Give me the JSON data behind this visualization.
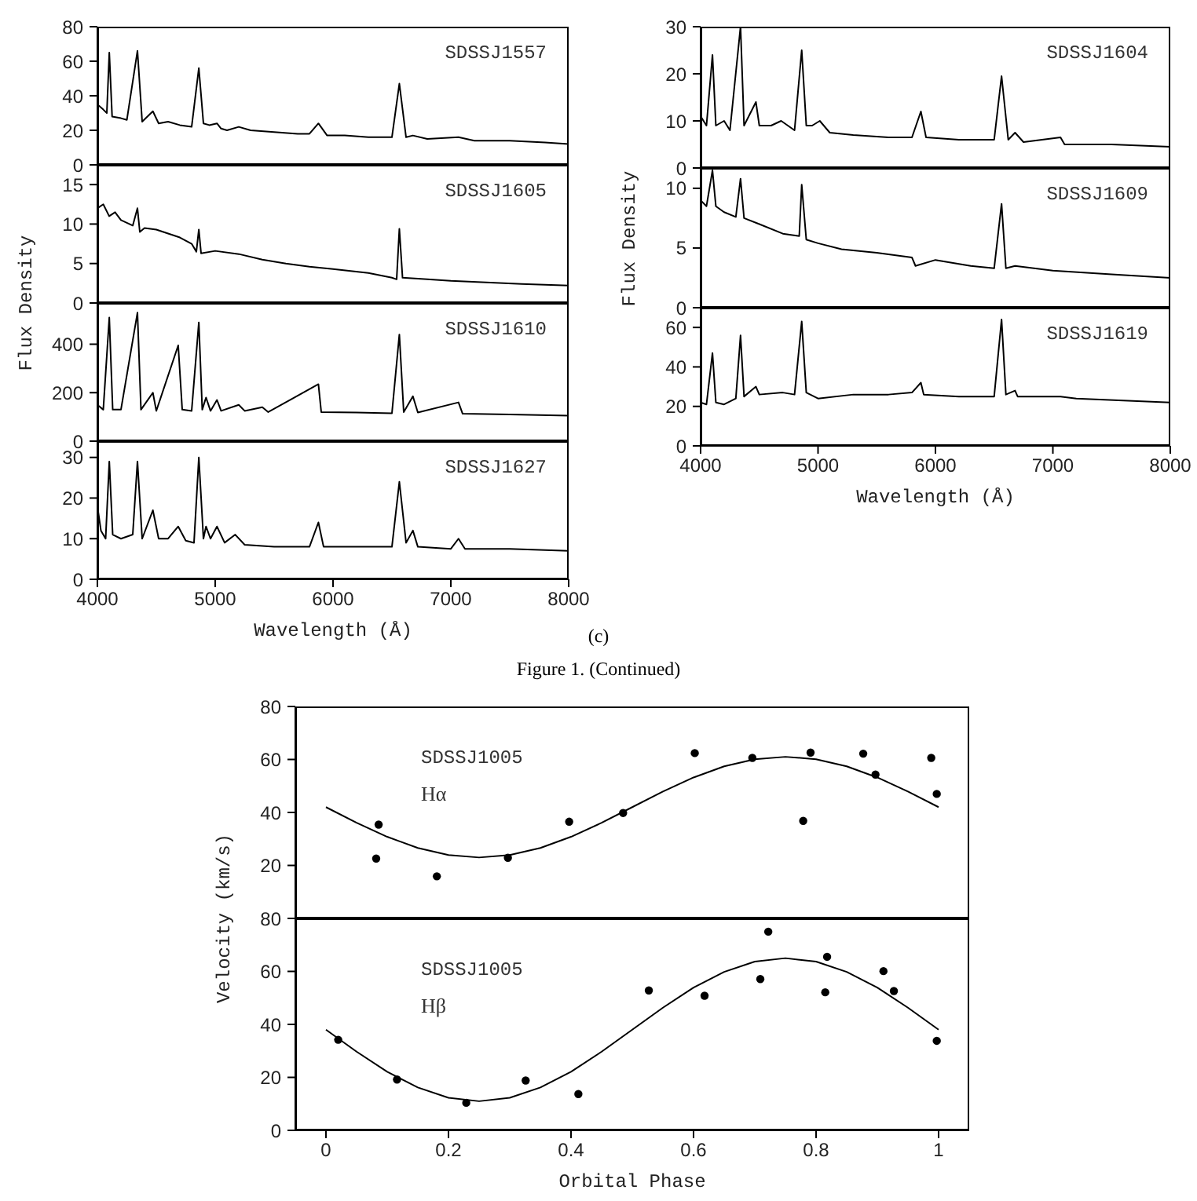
{
  "chart_data": [
    {
      "type": "line",
      "title": "SDSSJ1557",
      "xlim": [
        4000,
        8000
      ],
      "xticks": [
        4000,
        5000,
        6000,
        7000,
        8000
      ],
      "ylim": [
        0,
        80
      ],
      "yticks": [
        0,
        20,
        40,
        60,
        80
      ],
      "tick_labels": "y",
      "color": "#000000",
      "x": [
        4000,
        4050,
        4080,
        4101,
        4125,
        4200,
        4250,
        4340,
        4380,
        4471,
        4520,
        4600,
        4700,
        4800,
        4861,
        4900,
        4950,
        5015,
        5050,
        5100,
        5200,
        5300,
        5500,
        5700,
        5800,
        5876,
        5950,
        6100,
        6300,
        6500,
        6563,
        6620,
        6678,
        6800,
        7065,
        7200,
        7500,
        7800,
        8000
      ],
      "values": [
        35,
        32,
        30,
        65,
        28,
        27,
        26,
        66,
        25,
        31,
        24,
        25,
        23,
        22,
        56,
        24,
        23,
        24,
        21,
        20,
        22,
        20,
        19,
        18,
        18,
        24,
        17,
        17,
        16,
        16,
        47,
        16,
        17,
        15,
        16,
        14,
        14,
        13,
        12
      ]
    },
    {
      "type": "line",
      "title": "SDSSJ1605",
      "ylabel": "Flux Density",
      "xlim": [
        4000,
        8000
      ],
      "xticks": [
        4000,
        5000,
        6000,
        7000,
        8000
      ],
      "ylim": [
        0,
        17.5
      ],
      "yticks": [
        0,
        5,
        10,
        15
      ],
      "tick_labels": "y",
      "color": "#000000",
      "x": [
        4000,
        4050,
        4100,
        4150,
        4200,
        4300,
        4340,
        4360,
        4400,
        4500,
        4600,
        4700,
        4800,
        4840,
        4861,
        4880,
        5000,
        5200,
        5400,
        5600,
        5800,
        6000,
        6300,
        6500,
        6540,
        6563,
        6590,
        6800,
        7000,
        7300,
        7600,
        8000
      ],
      "values": [
        12,
        12.5,
        11,
        11.5,
        10.5,
        9.8,
        12,
        9,
        9.5,
        9.3,
        8.8,
        8.3,
        7.5,
        6.5,
        9.3,
        6.3,
        6.6,
        6.2,
        5.5,
        5,
        4.6,
        4.3,
        3.8,
        3.2,
        3,
        9.4,
        3.2,
        3,
        2.8,
        2.6,
        2.4,
        2.2
      ]
    },
    {
      "type": "line",
      "title": "SDSSJ1610",
      "xlim": [
        4000,
        8000
      ],
      "xticks": [
        4000,
        5000,
        6000,
        7000,
        8000
      ],
      "ylim": [
        0,
        570
      ],
      "yticks": [
        0,
        200,
        400
      ],
      "tick_labels": "y",
      "color": "#000000",
      "x": [
        4000,
        4050,
        4101,
        4130,
        4200,
        4340,
        4370,
        4471,
        4500,
        4686,
        4720,
        4800,
        4861,
        4890,
        4922,
        4960,
        5015,
        5050,
        5200,
        5250,
        5400,
        5450,
        5876,
        5900,
        6200,
        6500,
        6563,
        6600,
        6678,
        6720,
        7065,
        7100,
        7500,
        8000
      ],
      "values": [
        150,
        130,
        510,
        130,
        130,
        530,
        130,
        200,
        125,
        395,
        130,
        125,
        490,
        130,
        180,
        125,
        170,
        125,
        150,
        125,
        140,
        120,
        235,
        120,
        118,
        115,
        440,
        120,
        185,
        118,
        160,
        113,
        110,
        105
      ]
    },
    {
      "type": "line",
      "title": "SDSSJ1627",
      "xlabel": "Wavelength (Å)",
      "xlim": [
        4000,
        8000
      ],
      "xticks": [
        4000,
        5000,
        6000,
        7000,
        8000
      ],
      "ylim": [
        0,
        34
      ],
      "yticks": [
        0,
        10,
        20,
        30
      ],
      "color": "#000000",
      "annotations": [
        "(c)",
        "Figure 1. (Continued)"
      ],
      "x": [
        4000,
        4030,
        4070,
        4101,
        4130,
        4200,
        4300,
        4340,
        4380,
        4471,
        4520,
        4600,
        4686,
        4750,
        4820,
        4861,
        4900,
        4922,
        4960,
        5015,
        5080,
        5170,
        5250,
        5500,
        5800,
        5876,
        5920,
        6200,
        6500,
        6563,
        6620,
        6678,
        6720,
        7000,
        7065,
        7120,
        7500,
        8000
      ],
      "values": [
        18,
        12,
        10,
        29,
        11,
        10,
        11,
        29,
        10,
        17,
        10,
        10,
        13,
        9.5,
        9,
        30,
        10,
        13,
        10,
        13,
        9,
        11,
        8.5,
        8,
        8,
        14,
        8,
        8,
        8,
        24,
        9,
        12,
        8,
        7.5,
        10,
        7.5,
        7.5,
        7
      ]
    },
    {
      "type": "line",
      "title": "SDSSJ1604",
      "xlim": [
        4000,
        8000
      ],
      "xticks": [
        4000,
        5000,
        6000,
        7000,
        8000
      ],
      "ylim": [
        0,
        30
      ],
      "yticks": [
        0,
        10,
        20,
        30
      ],
      "tick_labels": "y",
      "color": "#000000",
      "x": [
        4000,
        4050,
        4101,
        4130,
        4200,
        4250,
        4340,
        4370,
        4471,
        4500,
        4600,
        4686,
        4800,
        4861,
        4900,
        4950,
        5015,
        5100,
        5300,
        5600,
        5800,
        5876,
        5920,
        6200,
        6500,
        6563,
        6620,
        6678,
        6750,
        7065,
        7100,
        7500,
        8000
      ],
      "values": [
        11,
        9,
        24,
        9,
        10,
        8,
        30,
        9,
        14,
        9,
        9,
        10,
        8,
        25,
        9,
        9,
        10,
        7.5,
        7,
        6.5,
        6.5,
        12,
        6.5,
        6,
        6,
        19.5,
        6,
        7.5,
        5.5,
        6.5,
        5,
        5,
        4.5
      ]
    },
    {
      "type": "line",
      "title": "SDSSJ1609",
      "ylabel": "Flux Density",
      "xlim": [
        4000,
        8000
      ],
      "xticks": [
        4000,
        5000,
        6000,
        7000,
        8000
      ],
      "ylim": [
        0,
        11.7
      ],
      "yticks": [
        0,
        5,
        10
      ],
      "tick_labels": "y",
      "color": "#000000",
      "x": [
        4000,
        4050,
        4101,
        4130,
        4200,
        4300,
        4340,
        4370,
        4500,
        4700,
        4840,
        4861,
        4900,
        5000,
        5200,
        5500,
        5800,
        5830,
        6000,
        6300,
        6500,
        6563,
        6600,
        6678,
        7000,
        7500,
        8000
      ],
      "values": [
        9,
        8.5,
        11.5,
        8.5,
        8,
        7.6,
        10.8,
        7.5,
        7,
        6.2,
        6,
        10.3,
        5.7,
        5.4,
        4.9,
        4.6,
        4.2,
        3.5,
        4,
        3.5,
        3.3,
        8.7,
        3.3,
        3.5,
        3.1,
        2.8,
        2.5
      ]
    },
    {
      "type": "line",
      "title": "SDSSJ1619",
      "xlabel": "Wavelength (Å)",
      "xlim": [
        4000,
        8000
      ],
      "xticks": [
        4000,
        5000,
        6000,
        7000,
        8000
      ],
      "ylim": [
        0,
        70
      ],
      "yticks": [
        0,
        20,
        40,
        60
      ],
      "color": "#000000",
      "x": [
        4000,
        4050,
        4101,
        4130,
        4200,
        4300,
        4340,
        4370,
        4471,
        4500,
        4700,
        4800,
        4861,
        4900,
        5000,
        5300,
        5600,
        5800,
        5876,
        5900,
        6200,
        6500,
        6563,
        6600,
        6678,
        6700,
        7065,
        7200,
        7600,
        8000
      ],
      "values": [
        22,
        21,
        47,
        22,
        21,
        24,
        56,
        25,
        30,
        26,
        27,
        26,
        63,
        27,
        24,
        26,
        26,
        27,
        32,
        26,
        25,
        25,
        64,
        26,
        28,
        25,
        25,
        24,
        23,
        22
      ]
    },
    {
      "type": "scatter",
      "title": "SDSSJ1005",
      "subtitle": "Hα",
      "ylabel": "Velocity (km/s)",
      "xlim": [
        -0.05,
        1.05
      ],
      "xticks": [
        0,
        0.2,
        0.4,
        0.6,
        0.8,
        1
      ],
      "ylim": [
        0,
        80
      ],
      "yticks": [
        20,
        40,
        60,
        80
      ],
      "tick_labels": "y",
      "series": [
        {
          "type": "scatter",
          "marker": "circle",
          "color": "#000000",
          "x": [
            0.086,
            0.082,
            0.181,
            0.297,
            0.397,
            0.485,
            0.602,
            0.696,
            0.779,
            0.791,
            0.877,
            0.897,
            0.988,
            0.997
          ],
          "values": [
            35.4,
            22.6,
            15.9,
            22.9,
            36.5,
            39.8,
            62.4,
            60.6,
            36.8,
            62.6,
            62.2,
            54.3,
            60.6,
            47
          ]
        },
        {
          "type": "line",
          "color": "#000000",
          "x": [
            0,
            0.05,
            0.1,
            0.15,
            0.2,
            0.25,
            0.3,
            0.35,
            0.4,
            0.45,
            0.5,
            0.55,
            0.6,
            0.65,
            0.7,
            0.75,
            0.8,
            0.85,
            0.9,
            0.95,
            1
          ],
          "values": [
            42,
            36.1,
            30.8,
            26.6,
            23.9,
            23,
            23.9,
            26.6,
            30.8,
            36.1,
            42,
            47.9,
            53.2,
            57.4,
            60.1,
            61,
            60.1,
            57.4,
            53.2,
            47.9,
            42
          ]
        }
      ]
    },
    {
      "type": "scatter",
      "title": "SDSSJ1005",
      "subtitle": "Hβ",
      "xlabel": "Orbital Phase",
      "xlim": [
        -0.05,
        1.05
      ],
      "xticks": [
        0,
        0.2,
        0.4,
        0.6,
        0.8,
        1
      ],
      "ylim": [
        0,
        80
      ],
      "yticks": [
        0,
        20,
        40,
        60,
        80
      ],
      "series": [
        {
          "type": "scatter",
          "marker": "circle",
          "color": "#000000",
          "x": [
            0.02,
            0.116,
            0.229,
            0.326,
            0.412,
            0.527,
            0.618,
            0.709,
            0.722,
            0.815,
            0.818,
            0.91,
            0.927,
            0.997
          ],
          "values": [
            34.2,
            19.2,
            10.4,
            18.8,
            13.7,
            52.8,
            50.8,
            57.1,
            75,
            52.1,
            65.5,
            60.1,
            52.6,
            33.8
          ]
        },
        {
          "type": "line",
          "color": "#000000",
          "x": [
            0,
            0.05,
            0.1,
            0.15,
            0.2,
            0.25,
            0.3,
            0.35,
            0.4,
            0.45,
            0.5,
            0.55,
            0.6,
            0.65,
            0.7,
            0.75,
            0.8,
            0.85,
            0.9,
            0.95,
            1
          ],
          "values": [
            38,
            29.7,
            22.1,
            16.2,
            12.3,
            11,
            12.3,
            16.2,
            22.1,
            29.7,
            38,
            46.3,
            53.9,
            59.8,
            63.7,
            65,
            63.7,
            59.8,
            53.9,
            46.3,
            38
          ]
        }
      ]
    }
  ]
}
